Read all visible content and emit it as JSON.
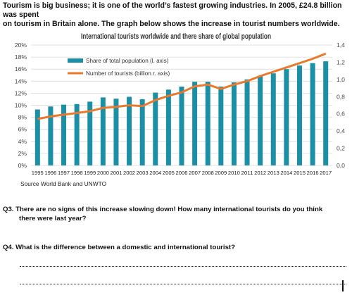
{
  "intro": {
    "line1": "Tourism is big business; it is one of the world’s fastest growing industries.  In 2005, £24.8 billion was spent",
    "line2": "on tourism in Britain alone.  The graph below shows the increase in tourist numbers worldwide."
  },
  "chart_data": {
    "type": "bar",
    "title": "International tourists worldwide and there share of global population",
    "source": "Source World Bank and UNWTO",
    "categories": [
      "1995",
      "1996",
      "1997",
      "1998",
      "1999",
      "2000",
      "2001",
      "2002",
      "2003",
      "2004",
      "2005",
      "2006",
      "2007",
      "2008",
      "2009",
      "2010",
      "2011",
      "2012",
      "2013",
      "2014",
      "2015",
      "2016",
      "2017"
    ],
    "y_left_ticks": [
      "20%",
      "18%",
      "16%",
      "14%",
      "12%",
      "10%",
      "8%",
      "6%",
      "4%",
      "2%",
      "0%"
    ],
    "y_right_ticks": [
      "1,4",
      "1,2",
      "1,0",
      "0,8",
      "0,6",
      "0,4",
      "0,2",
      "0,0"
    ],
    "ylim_left": [
      0,
      20
    ],
    "ylim_right": [
      0,
      1.4
    ],
    "grid": true,
    "legend_position": "upper-left",
    "series": [
      {
        "name": "Share of total population (l. axis)",
        "type": "bar",
        "axis": "left",
        "color": "#1a8fa5",
        "values": [
          9.3,
          9.8,
          10.1,
          10.2,
          10.6,
          11.3,
          11.1,
          11.4,
          11.0,
          12.1,
          12.6,
          13.1,
          13.9,
          13.9,
          13.1,
          13.8,
          14.3,
          14.8,
          15.3,
          16.0,
          16.6,
          17.0,
          17.3
        ]
      },
      {
        "name": "Number of tourists (billion r. axis)",
        "type": "line",
        "axis": "right",
        "color": "#e87a2e",
        "values": [
          0.54,
          0.57,
          0.59,
          0.61,
          0.63,
          0.67,
          0.68,
          0.7,
          0.69,
          0.76,
          0.81,
          0.85,
          0.92,
          0.94,
          0.89,
          0.94,
          0.98,
          1.04,
          1.09,
          1.14,
          1.19,
          1.24,
          1.3
        ]
      }
    ]
  },
  "questions": {
    "q3_line1": "Q3.  There are no signs of this increase slowing down!  How many international tourists do you think",
    "q3_line2": "there were last year?",
    "q4": "Q4.  What is the difference between a domestic and international tourist?"
  }
}
